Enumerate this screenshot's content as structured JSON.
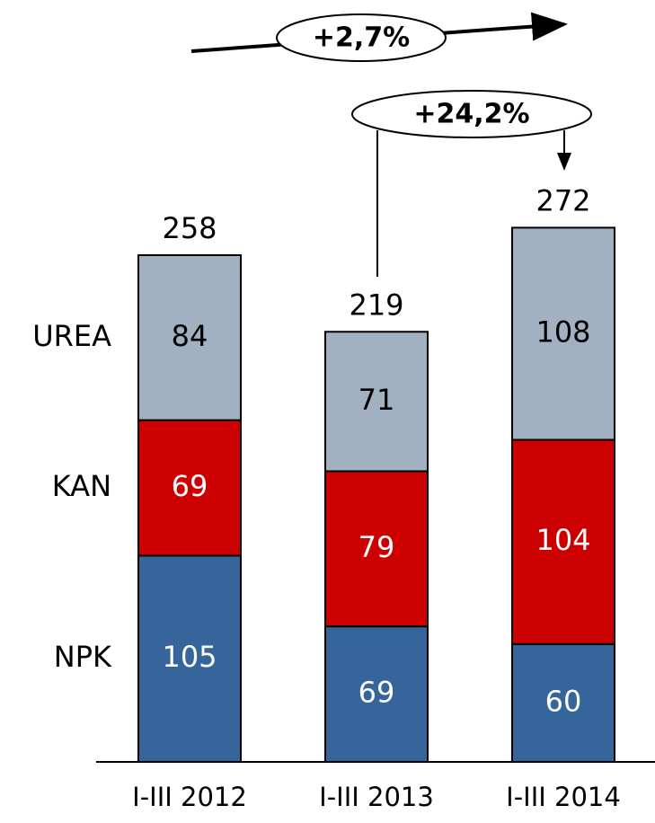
{
  "chart_data": {
    "type": "stacked_bar",
    "categories": [
      "I-III 2012",
      "I-III 2013",
      "I-III 2014"
    ],
    "series": [
      {
        "name": "NPK",
        "color": "#35659a",
        "values": [
          105,
          69,
          60
        ]
      },
      {
        "name": "KAN",
        "color": "#cc0000",
        "values": [
          69,
          79,
          104
        ]
      },
      {
        "name": "UREA",
        "color": "#a2b1c1",
        "values": [
          84,
          71,
          108
        ]
      }
    ],
    "totals": [
      258,
      219,
      272
    ],
    "annotations": [
      "+2,7%",
      "+24,2%"
    ]
  }
}
